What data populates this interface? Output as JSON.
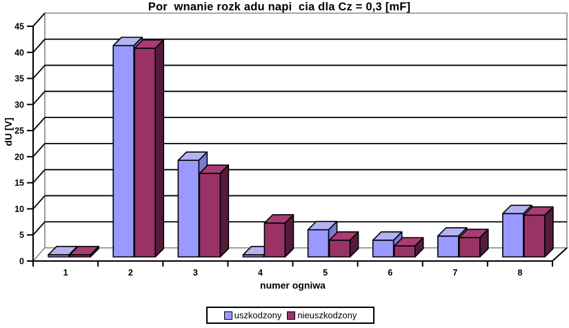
{
  "chart_data": {
    "type": "bar",
    "style": "3d-clustered-column",
    "title": "Por  wnanie rozk adu napi  cia dla Cz = 0,3 [mF]",
    "categories": [
      "1",
      "2",
      "3",
      "4",
      "5",
      "6",
      "7",
      "8"
    ],
    "series": [
      {
        "name": "uszkodzony",
        "values": [
          0.4,
          40.5,
          18.5,
          0.4,
          5.2,
          3.2,
          4.0,
          8.3
        ]
      },
      {
        "name": "nieuszkodzony",
        "values": [
          0.4,
          40.0,
          16.0,
          6.5,
          3.2,
          2.1,
          3.7,
          8.0
        ]
      }
    ],
    "xlabel": "numer ogniwa",
    "ylabel": "dU [V]",
    "ylim": [
      0,
      45
    ],
    "ytick_step": 5,
    "y_tick_labels": [
      "0",
      "5",
      "10",
      "15",
      "20",
      "25",
      "30",
      "35",
      "40",
      "45"
    ],
    "grid": true,
    "legend_position": "bottom"
  },
  "colors": {
    "background": "#FFFFFF",
    "gridline": "#000000",
    "axis": "#000000",
    "wall_edge": "#8C8C8C",
    "text": "#000000",
    "series1_front": "#9999FF",
    "series1_top": "#B3B3F2",
    "series1_side": "#7A7ACF",
    "series2_front": "#993366",
    "series2_top": "#A93C74",
    "series2_side": "#541C3A"
  }
}
